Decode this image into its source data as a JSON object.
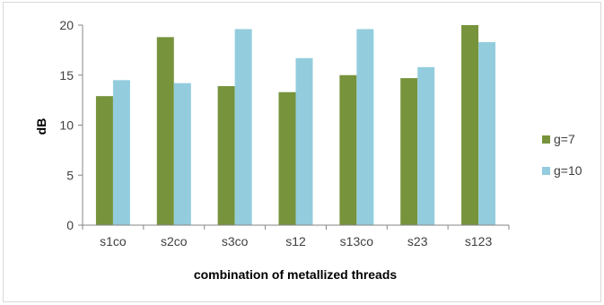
{
  "chart_data": {
    "type": "bar",
    "categories": [
      "s1co",
      "s2co",
      "s3co",
      "s12",
      "s13co",
      "s23",
      "s123"
    ],
    "series": [
      {
        "name": "g=7",
        "values": [
          12.9,
          18.8,
          13.9,
          13.3,
          15.0,
          14.7,
          20.0
        ]
      },
      {
        "name": "g=10",
        "values": [
          14.5,
          14.2,
          19.6,
          16.7,
          19.6,
          15.8,
          18.3
        ]
      }
    ],
    "xlabel": "combination of metallized threads",
    "ylabel": "dB",
    "ylim": [
      0,
      20
    ],
    "yticks": [
      0,
      5,
      10,
      15,
      20
    ],
    "grid": false,
    "legend": "right",
    "colors": {
      "g=7": "#77933c",
      "g=10": "#93cddd",
      "axis": "#868686",
      "frame": "#d9d9d9"
    }
  }
}
